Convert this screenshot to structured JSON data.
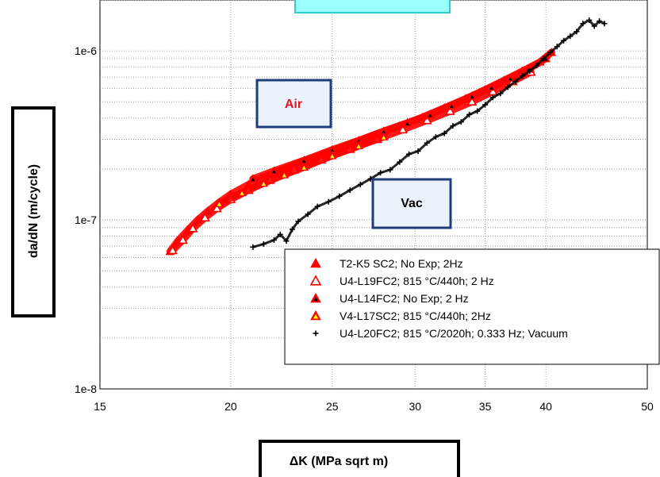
{
  "chart_data": {
    "type": "scatter",
    "x_scale": "log",
    "y_scale": "log",
    "xlabel": "ΔK (MPa sqrt m)",
    "ylabel": "da/dN (m/cycle)",
    "xlim": [
      15,
      50
    ],
    "ylim": [
      1e-08,
      2e-06
    ],
    "x_ticks": [
      15,
      20,
      25,
      30,
      35,
      40,
      50
    ],
    "x_tick_labels": [
      "15",
      "20",
      "25",
      "30",
      "35",
      "40",
      "50"
    ],
    "y_ticks": [
      1e-08,
      1e-07,
      1e-06
    ],
    "y_tick_labels": [
      "1e-8",
      "1e-7",
      "1e-6"
    ],
    "grid": true,
    "legend_position": "bottom-right",
    "annotations": [
      {
        "text": "Air",
        "color": "#e8141b"
      },
      {
        "text": "Vac",
        "color": "#000000"
      }
    ],
    "series": [
      {
        "name": "T2-K5 SC2; No Exp; 2Hz",
        "marker": "filled-triangle",
        "color": "#ff0000",
        "x": [
          17.5,
          17.8,
          18.2,
          18.6,
          19.0,
          19.5,
          20.0,
          20.8,
          21.8,
          23.0,
          24.5,
          26.0,
          27.5,
          29.0,
          30.5,
          32.0,
          33.5,
          35.0,
          36.5,
          38.0,
          39.5,
          40.5
        ],
        "y": [
          6.5e-08,
          7.5e-08,
          8.7e-08,
          1e-07,
          1.12e-07,
          1.27e-07,
          1.42e-07,
          1.62e-07,
          1.85e-07,
          2.12e-07,
          2.45e-07,
          2.8e-07,
          3.2e-07,
          3.6e-07,
          4.05e-07,
          4.6e-07,
          5.2e-07,
          5.9e-07,
          6.7e-07,
          7.6e-07,
          8.6e-07,
          9.8e-07
        ]
      },
      {
        "name": "U4-L19FC2; 815 °C/440h; 2 Hz",
        "marker": "open-triangle",
        "color": "#ff0000",
        "x": [
          17.6,
          18.0,
          18.4,
          18.9,
          19.4,
          20.0,
          20.8,
          21.8,
          23.0,
          24.4,
          26.0,
          27.6,
          29.2,
          30.8,
          32.4,
          34.0,
          35.6,
          37.2,
          38.7
        ],
        "y": [
          6.6e-08,
          7.6e-08,
          8.9e-08,
          1.03e-07,
          1.17e-07,
          1.32e-07,
          1.5e-07,
          1.72e-07,
          1.98e-07,
          2.27e-07,
          2.62e-07,
          3e-07,
          3.42e-07,
          3.88e-07,
          4.4e-07,
          5e-07,
          5.75e-07,
          6.6e-07,
          7.5e-07
        ]
      },
      {
        "name": "U4-L14FC2; No Exp; 2 Hz",
        "marker": "dark-triangle",
        "color": "#8b0000",
        "x": [
          21.0,
          22.0,
          23.5,
          25.0,
          26.5,
          28.0,
          29.5,
          31.0,
          32.5,
          34.0,
          35.5,
          37.0,
          38.5,
          40.0
        ],
        "y": [
          1.75e-07,
          1.95e-07,
          2.25e-07,
          2.6e-07,
          2.95e-07,
          3.35e-07,
          3.75e-07,
          4.2e-07,
          4.75e-07,
          5.4e-07,
          6.1e-07,
          6.9e-07,
          7.8e-07,
          9e-07
        ]
      },
      {
        "name": "V4-L17SC2; 815 °C/440h; 2Hz",
        "marker": "yellow-triangle",
        "color": "#ff0000",
        "x": [
          19.5,
          20.5,
          21.5,
          22.5,
          23.5,
          25.0,
          26.5,
          28.0
        ],
        "y": [
          1.25e-07,
          1.45e-07,
          1.65e-07,
          1.85e-07,
          2.05e-07,
          2.4e-07,
          2.75e-07,
          3.1e-07
        ]
      },
      {
        "name": "U4-L20FC2; 815 °C/2020h; 0.333 Hz; Vacuum",
        "marker": "plus",
        "color": "#000000",
        "x": [
          21.0,
          21.5,
          22.0,
          22.3,
          22.6,
          22.9,
          23.2,
          23.7,
          24.2,
          24.8,
          25.4,
          26.0,
          26.6,
          27.2,
          27.8,
          28.4,
          29.0,
          29.6,
          30.2,
          30.8,
          31.4,
          32.0,
          32.6,
          33.2,
          33.8,
          34.4,
          35.0,
          35.6,
          36.2,
          36.8,
          37.4,
          38.0,
          38.6,
          39.2,
          39.8,
          40.4,
          41.0,
          41.6,
          42.2,
          42.8,
          43.4,
          44.0,
          44.5,
          45.0,
          45.5
        ],
        "y": [
          6.9e-08,
          7.2e-08,
          7.6e-08,
          8.2e-08,
          7.5e-08,
          8.8e-08,
          9.8e-08,
          1.08e-07,
          1.2e-07,
          1.28e-07,
          1.38e-07,
          1.5e-07,
          1.62e-07,
          1.75e-07,
          1.9e-07,
          1.98e-07,
          2.2e-07,
          2.45e-07,
          2.55e-07,
          2.85e-07,
          3.1e-07,
          3.25e-07,
          3.6e-07,
          3.8e-07,
          4.2e-07,
          4.4e-07,
          4.8e-07,
          5.3e-07,
          5.6e-07,
          6.1e-07,
          6.6e-07,
          7.1e-07,
          7.6e-07,
          8.2e-07,
          9e-07,
          9.8e-07,
          1.06e-06,
          1.15e-06,
          1.22e-06,
          1.3e-06,
          1.45e-06,
          1.52e-06,
          1.4e-06,
          1.5e-06,
          1.45e-06
        ]
      }
    ]
  }
}
